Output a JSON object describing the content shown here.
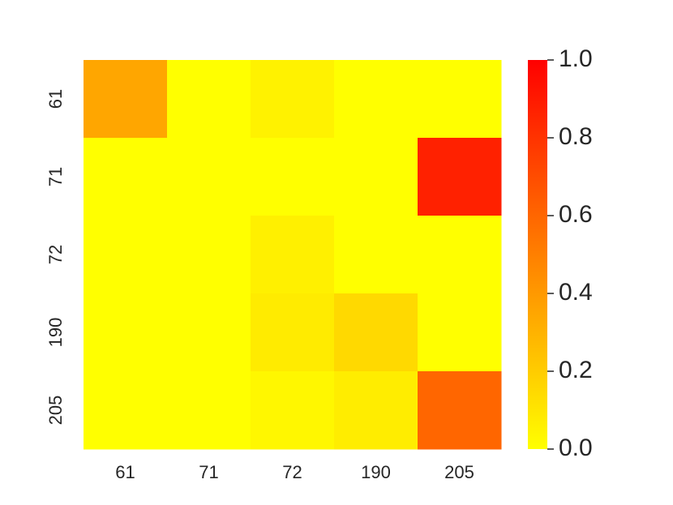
{
  "chart_data": {
    "type": "heatmap",
    "x_categories": [
      "61",
      "71",
      "72",
      "190",
      "205"
    ],
    "y_categories": [
      "61",
      "71",
      "72",
      "190",
      "205"
    ],
    "values": [
      [
        0.35,
        0,
        0.05,
        0,
        0
      ],
      [
        0,
        0,
        0,
        0,
        0.87
      ],
      [
        0,
        0,
        0.06,
        0,
        0
      ],
      [
        0,
        0,
        0.08,
        0.15,
        0
      ],
      [
        0,
        0,
        0.03,
        0.07,
        0.6
      ]
    ],
    "colormap": [
      "#ffff00",
      "#ff0000"
    ],
    "clim": [
      0,
      1
    ],
    "cticks": [
      {
        "value": 0,
        "label": "0.0"
      },
      {
        "value": 0.2,
        "label": "0.2"
      },
      {
        "value": 0.4,
        "label": "0.4"
      },
      {
        "value": 0.6,
        "label": "0.6"
      },
      {
        "value": 0.8,
        "label": "0.8"
      },
      {
        "value": 1,
        "label": "1.0"
      }
    ]
  }
}
